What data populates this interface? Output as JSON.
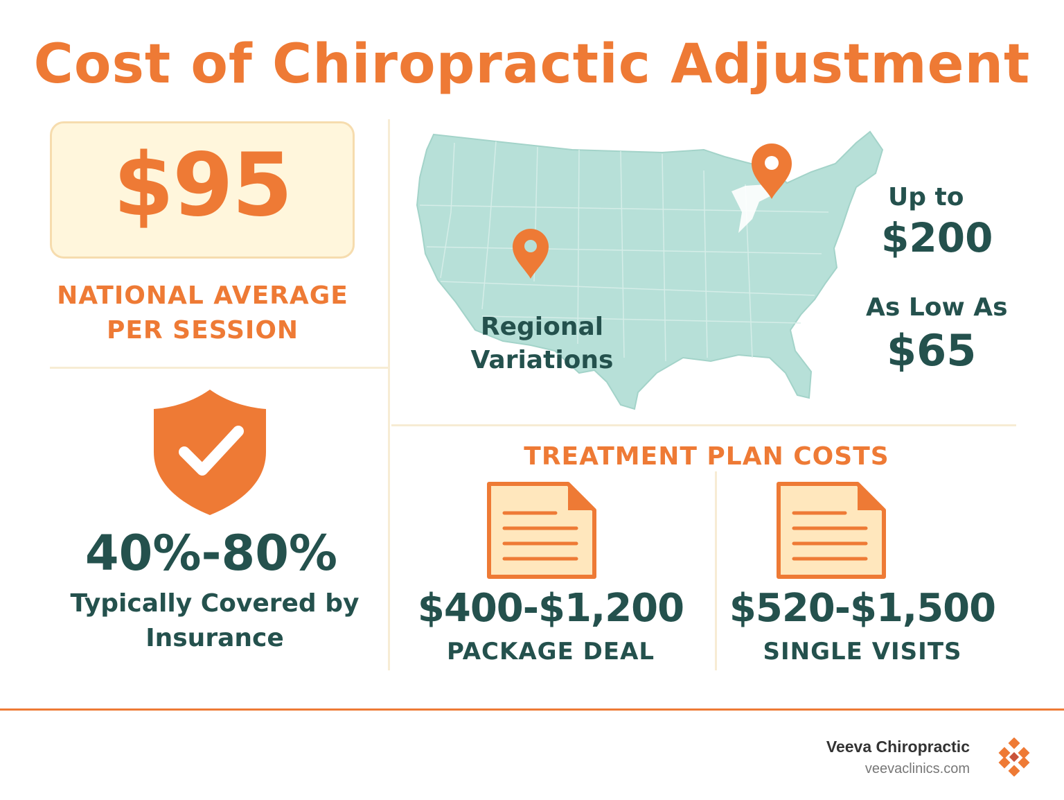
{
  "title": "Cost of Chiropractic Adjustment",
  "national_average": {
    "price": "$95",
    "caption_line1": "NATIONAL AVERAGE",
    "caption_line2": "PER SESSION"
  },
  "insurance": {
    "icon": "shield-check-icon",
    "percent": "40%-80%",
    "caption_line1": "Typically Covered by",
    "caption_line2": "Insurance"
  },
  "regional": {
    "label_line1": "Regional",
    "label_line2": "Variations",
    "high_label": "Up to",
    "high_price": "$200",
    "low_label": "As Low As",
    "low_price": "$65",
    "icons": [
      "map-pin-icon",
      "map-pin-icon"
    ]
  },
  "treatment_plan": {
    "heading": "TREATMENT PLAN COSTS",
    "items": [
      {
        "price": "$400-$1,200",
        "label": "PACKAGE DEAL",
        "icon": "document-icon"
      },
      {
        "price": "$520-$1,500",
        "label": "SINGLE VISITS",
        "icon": "document-icon"
      }
    ]
  },
  "footer": {
    "brand": "Veeva Chiropractic",
    "url": "veevaclinics.com",
    "logo_icon": "diamond-logo-icon"
  },
  "colors": {
    "accent_orange": "#ee7a35",
    "dark_teal": "#24514d",
    "map_fill": "#b7e0d8",
    "panel_cream": "#fff6dc"
  }
}
